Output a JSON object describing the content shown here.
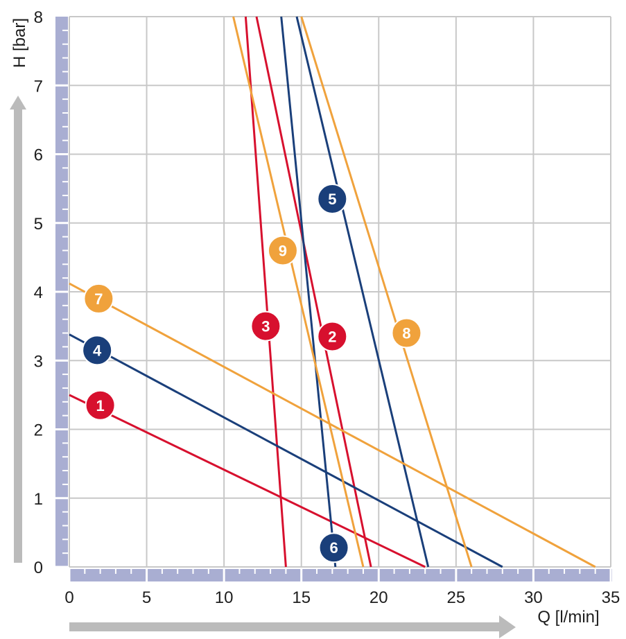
{
  "chart_data": {
    "type": "line",
    "xlabel": "Q [l/min]",
    "ylabel": "H [bar]",
    "xlim": [
      0,
      35
    ],
    "ylim": [
      0,
      8
    ],
    "x_ticks": [
      "0",
      "5",
      "10",
      "15",
      "20",
      "25",
      "30",
      "35"
    ],
    "y_ticks": [
      "0",
      "1",
      "2",
      "3",
      "4",
      "5",
      "6",
      "7",
      "8"
    ],
    "grid": true,
    "series": [
      {
        "name": "1",
        "color": "#d7102e",
        "points": [
          [
            0,
            2.5
          ],
          [
            23,
            0
          ]
        ],
        "marker": [
          2,
          2.35
        ]
      },
      {
        "name": "2",
        "color": "#d7102e",
        "points": [
          [
            12.1,
            8
          ],
          [
            19.5,
            0
          ]
        ],
        "marker": [
          17,
          3.35
        ]
      },
      {
        "name": "3",
        "color": "#d7102e",
        "points": [
          [
            11.4,
            8
          ],
          [
            14,
            0
          ]
        ],
        "marker": [
          12.7,
          3.5
        ]
      },
      {
        "name": "4",
        "color": "#1a3f7a",
        "points": [
          [
            0,
            3.38
          ],
          [
            28,
            0
          ]
        ],
        "marker": [
          1.8,
          3.15
        ]
      },
      {
        "name": "5",
        "color": "#1a3f7a",
        "points": [
          [
            14.7,
            8
          ],
          [
            23.2,
            0
          ]
        ],
        "marker": [
          17,
          5.35
        ]
      },
      {
        "name": "6",
        "color": "#1a3f7a",
        "points": [
          [
            13.7,
            8
          ],
          [
            17.2,
            0
          ]
        ],
        "marker": [
          17.1,
          0.28
        ]
      },
      {
        "name": "7",
        "color": "#f0a23c",
        "points": [
          [
            0,
            4.12
          ],
          [
            34,
            0
          ]
        ],
        "marker": [
          1.9,
          3.9
        ]
      },
      {
        "name": "8",
        "color": "#f0a23c",
        "points": [
          [
            15,
            8
          ],
          [
            26,
            0
          ]
        ],
        "marker": [
          21.8,
          3.4
        ]
      },
      {
        "name": "9",
        "color": "#f0a23c",
        "points": [
          [
            10.6,
            8
          ],
          [
            19,
            0
          ]
        ],
        "marker": [
          13.8,
          4.6
        ]
      }
    ]
  }
}
